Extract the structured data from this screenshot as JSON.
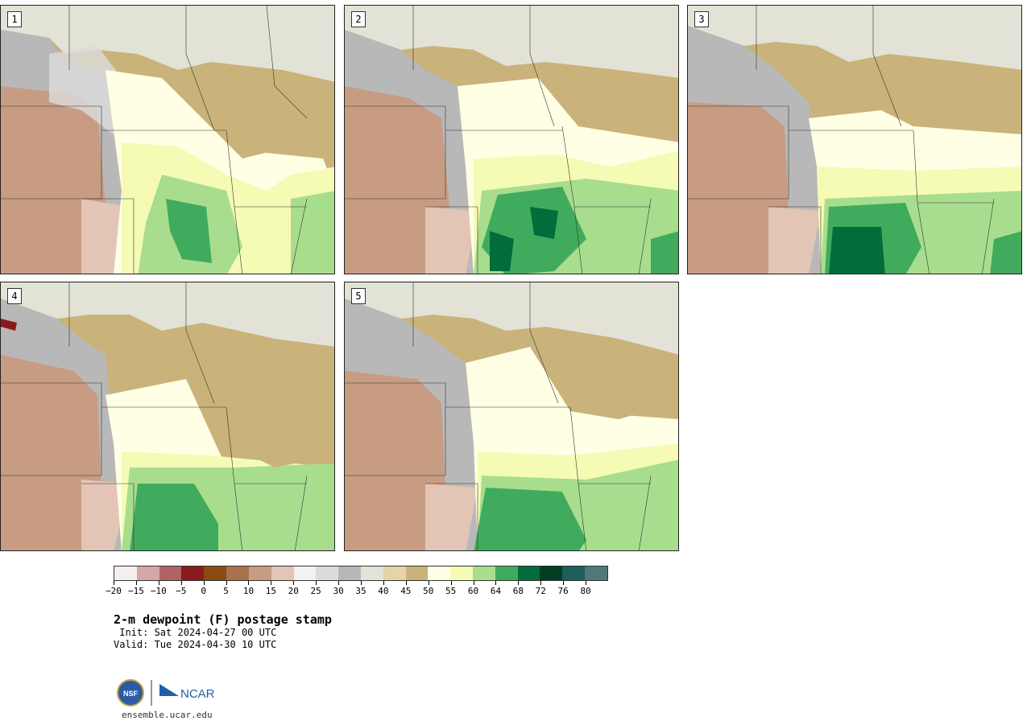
{
  "panels": [
    {
      "label": "1"
    },
    {
      "label": "2"
    },
    {
      "label": "3"
    },
    {
      "label": "4"
    },
    {
      "label": "5"
    }
  ],
  "colorbar": {
    "colors": [
      "#f4eeee",
      "#d6a7a7",
      "#b06363",
      "#8b1a1a",
      "#8a4a12",
      "#a9724d",
      "#c79c82",
      "#e2c5b4",
      "#f2f2f2",
      "#dcdcdc",
      "#b8b8b8",
      "#e2e2d6",
      "#e4d4a8",
      "#c9b37a",
      "#ffffe5",
      "#f5fbb5",
      "#a8dd8e",
      "#41ab5d",
      "#006d3a",
      "#003d22",
      "#1f5c5c",
      "#507878"
    ],
    "tick_labels": [
      "−20",
      "−15",
      "−10",
      "−5",
      "0",
      "5",
      "10",
      "15",
      "20",
      "25",
      "30",
      "35",
      "40",
      "45",
      "50",
      "55",
      "60",
      "64",
      "68",
      "72",
      "76",
      "80"
    ]
  },
  "title": "2-m dewpoint (F) postage stamp",
  "init": " Init: Sat 2024-04-27 00 UTC",
  "valid": "Valid: Tue 2024-04-30 10 UTC",
  "site": "ensemble.ucar.edu",
  "logo": {
    "left_text": "NSF",
    "right_text": "NCAR",
    "brand_color": "#1f5fa8"
  }
}
